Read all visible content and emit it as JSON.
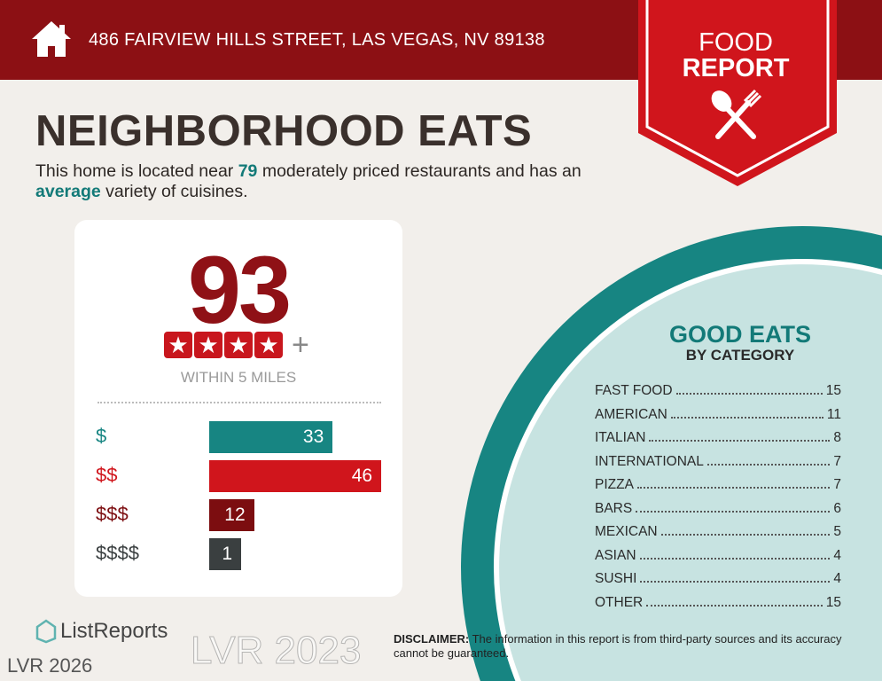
{
  "header": {
    "address": "486 FAIRVIEW HILLS STREET, LAS VEGAS, NV 89138",
    "icon": "home-icon"
  },
  "badge": {
    "line1": "FOOD",
    "line2": "REPORT",
    "icon": "spoon-fork-icon",
    "color": "#d0151c"
  },
  "title": "NEIGHBORHOOD EATS",
  "subtitle": {
    "p1": "This home is located near ",
    "count": "79",
    "p2": " moderately priced restaurants and has an ",
    "variety": "average",
    "p3": " variety of cuisines."
  },
  "score": {
    "value": "93",
    "stars": 4,
    "plus": "+",
    "within": "WITHIN 5 MILES"
  },
  "chart_data": {
    "type": "bar",
    "orientation": "horizontal",
    "categories": [
      "$",
      "$$",
      "$$$",
      "$$$$"
    ],
    "values": [
      33,
      46,
      12,
      1
    ],
    "colors": [
      "#178582",
      "#d0151c",
      "#7c0d10",
      "#3a3f40"
    ]
  },
  "good_eats": {
    "title": "GOOD EATS",
    "subtitle": "BY CATEGORY",
    "items": [
      {
        "name": "FAST FOOD",
        "count": "15"
      },
      {
        "name": "AMERICAN",
        "count": "11"
      },
      {
        "name": "ITALIAN",
        "count": "8"
      },
      {
        "name": "INTERNATIONAL",
        "count": "7"
      },
      {
        "name": "PIZZA",
        "count": "7"
      },
      {
        "name": "BARS",
        "count": "6"
      },
      {
        "name": "MEXICAN",
        "count": "5"
      },
      {
        "name": "ASIAN",
        "count": "4"
      },
      {
        "name": "SUSHI",
        "count": "4"
      },
      {
        "name": "OTHER",
        "count": "15"
      }
    ]
  },
  "footer": {
    "logo": "ListReports",
    "disclaimer_label": "DISCLAIMER:",
    "disclaimer": " The information in this report is from third-party sources and its accuracy cannot be guaranteed.",
    "watermark1": "LVR 2023",
    "watermark2": "LVR 2026"
  }
}
